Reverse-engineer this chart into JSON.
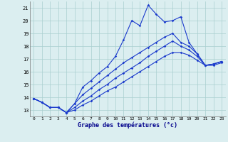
{
  "title": "",
  "xlabel": "Graphe des températures (°c)",
  "ylabel": "",
  "bg_color": "#dbeef0",
  "grid_color": "#aacfcf",
  "line_color": "#1a3acc",
  "ylim": [
    12.5,
    21.5
  ],
  "xlim": [
    -0.5,
    23.5
  ],
  "yticks": [
    13,
    14,
    15,
    16,
    17,
    18,
    19,
    20,
    21
  ],
  "xticks": [
    0,
    1,
    2,
    3,
    4,
    5,
    6,
    7,
    8,
    9,
    10,
    11,
    12,
    13,
    14,
    15,
    16,
    17,
    18,
    19,
    20,
    21,
    22,
    23
  ],
  "line1_x": [
    0,
    1,
    2,
    3,
    4,
    5,
    6,
    7,
    8,
    9,
    10,
    11,
    12,
    13,
    14,
    15,
    16,
    17,
    18,
    19,
    20,
    21,
    22,
    23
  ],
  "line1_y": [
    13.9,
    13.6,
    13.2,
    13.2,
    12.8,
    13.5,
    14.8,
    15.3,
    15.9,
    16.4,
    17.2,
    18.5,
    20.0,
    19.6,
    21.2,
    20.5,
    19.9,
    20.0,
    20.3,
    18.3,
    17.4,
    16.5,
    16.6,
    16.8
  ],
  "line2_x": [
    0,
    1,
    2,
    3,
    4,
    5,
    6,
    7,
    8,
    9,
    10,
    11,
    12,
    13,
    14,
    15,
    16,
    17,
    18,
    19,
    20,
    21,
    22,
    23
  ],
  "line2_y": [
    13.9,
    13.6,
    13.2,
    13.2,
    12.8,
    13.5,
    14.2,
    14.7,
    15.2,
    15.7,
    16.2,
    16.7,
    17.1,
    17.5,
    17.9,
    18.3,
    18.7,
    19.0,
    18.3,
    18.0,
    17.4,
    16.5,
    16.6,
    16.8
  ],
  "line3_x": [
    0,
    1,
    2,
    3,
    4,
    5,
    6,
    7,
    8,
    9,
    10,
    11,
    12,
    13,
    14,
    15,
    16,
    17,
    18,
    19,
    20,
    21,
    22,
    23
  ],
  "line3_y": [
    13.9,
    13.6,
    13.2,
    13.2,
    12.8,
    13.2,
    13.7,
    14.1,
    14.6,
    15.0,
    15.5,
    15.9,
    16.3,
    16.7,
    17.2,
    17.6,
    18.0,
    18.4,
    18.0,
    17.7,
    17.2,
    16.5,
    16.6,
    16.8
  ],
  "line4_x": [
    0,
    1,
    2,
    3,
    4,
    5,
    6,
    7,
    8,
    9,
    10,
    11,
    12,
    13,
    14,
    15,
    16,
    17,
    18,
    19,
    20,
    21,
    22,
    23
  ],
  "line4_y": [
    13.9,
    13.6,
    13.2,
    13.2,
    12.8,
    13.0,
    13.4,
    13.7,
    14.1,
    14.5,
    14.8,
    15.2,
    15.6,
    16.0,
    16.4,
    16.8,
    17.2,
    17.5,
    17.5,
    17.3,
    16.9,
    16.5,
    16.5,
    16.7
  ]
}
